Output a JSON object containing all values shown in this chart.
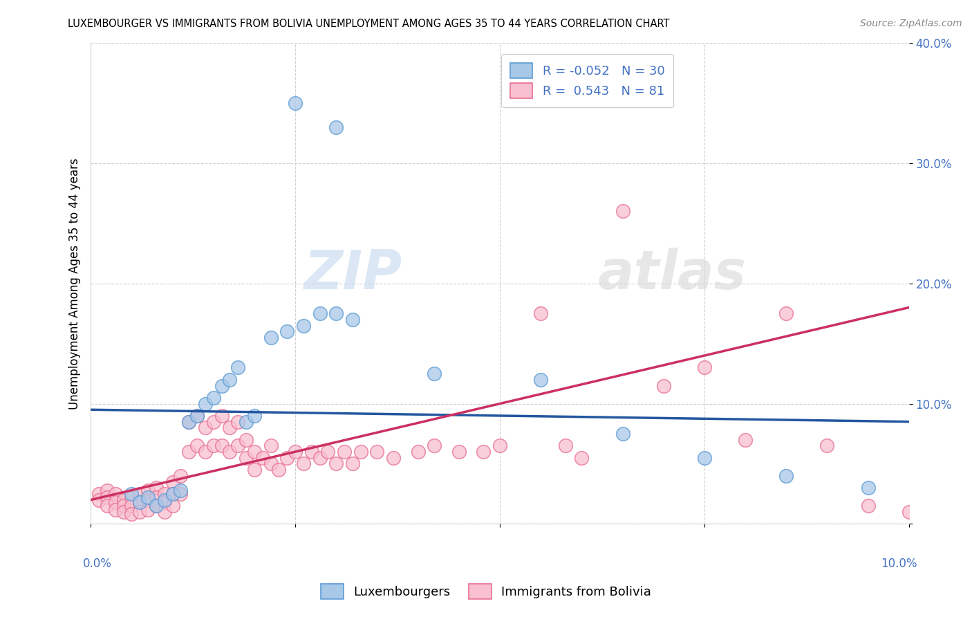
{
  "title": "LUXEMBOURGER VS IMMIGRANTS FROM BOLIVIA UNEMPLOYMENT AMONG AGES 35 TO 44 YEARS CORRELATION CHART",
  "source": "Source: ZipAtlas.com",
  "ylabel": "Unemployment Among Ages 35 to 44 years",
  "xlim": [
    0,
    0.1
  ],
  "ylim": [
    0,
    0.4
  ],
  "lux_color": "#a8c8e8",
  "lux_edge_color": "#5b9bd5",
  "bol_color": "#f8c0d0",
  "bol_edge_color": "#e87090",
  "lux_line_color": "#2457a0",
  "bol_line_color": "#cc3060",
  "legend_label_1": "R = -0.052   N = 30",
  "legend_label_2": "R =  0.543   N = 81",
  "bottom_label_1": "Luxembourgers",
  "bottom_label_2": "Immigrants from Bolivia",
  "watermark_1": "ZIP",
  "watermark_2": "atlas",
  "lux_x": [
    0.005,
    0.006,
    0.007,
    0.008,
    0.009,
    0.01,
    0.011,
    0.012,
    0.013,
    0.014,
    0.015,
    0.016,
    0.017,
    0.018,
    0.019,
    0.02,
    0.022,
    0.024,
    0.026,
    0.028,
    0.03,
    0.032,
    0.025,
    0.03,
    0.042,
    0.055,
    0.065,
    0.075,
    0.085,
    0.095
  ],
  "lux_y": [
    0.025,
    0.018,
    0.022,
    0.015,
    0.02,
    0.025,
    0.028,
    0.085,
    0.09,
    0.1,
    0.105,
    0.115,
    0.12,
    0.13,
    0.085,
    0.09,
    0.155,
    0.16,
    0.165,
    0.175,
    0.175,
    0.17,
    0.35,
    0.33,
    0.125,
    0.12,
    0.075,
    0.055,
    0.04,
    0.03
  ],
  "bol_x": [
    0.001,
    0.001,
    0.002,
    0.002,
    0.002,
    0.003,
    0.003,
    0.003,
    0.004,
    0.004,
    0.004,
    0.005,
    0.005,
    0.005,
    0.006,
    0.006,
    0.006,
    0.007,
    0.007,
    0.007,
    0.008,
    0.008,
    0.008,
    0.009,
    0.009,
    0.009,
    0.01,
    0.01,
    0.01,
    0.011,
    0.011,
    0.012,
    0.012,
    0.013,
    0.013,
    0.014,
    0.014,
    0.015,
    0.015,
    0.016,
    0.016,
    0.017,
    0.017,
    0.018,
    0.018,
    0.019,
    0.019,
    0.02,
    0.02,
    0.021,
    0.022,
    0.022,
    0.023,
    0.024,
    0.025,
    0.026,
    0.027,
    0.028,
    0.029,
    0.03,
    0.031,
    0.032,
    0.033,
    0.035,
    0.037,
    0.04,
    0.042,
    0.045,
    0.048,
    0.05,
    0.055,
    0.058,
    0.06,
    0.065,
    0.07,
    0.075,
    0.08,
    0.085,
    0.09,
    0.095,
    0.1
  ],
  "bol_y": [
    0.025,
    0.02,
    0.028,
    0.022,
    0.015,
    0.025,
    0.018,
    0.012,
    0.02,
    0.015,
    0.01,
    0.022,
    0.015,
    0.008,
    0.025,
    0.018,
    0.01,
    0.028,
    0.02,
    0.012,
    0.03,
    0.022,
    0.015,
    0.025,
    0.018,
    0.01,
    0.035,
    0.025,
    0.015,
    0.04,
    0.025,
    0.085,
    0.06,
    0.09,
    0.065,
    0.08,
    0.06,
    0.085,
    0.065,
    0.09,
    0.065,
    0.08,
    0.06,
    0.085,
    0.065,
    0.07,
    0.055,
    0.06,
    0.045,
    0.055,
    0.065,
    0.05,
    0.045,
    0.055,
    0.06,
    0.05,
    0.06,
    0.055,
    0.06,
    0.05,
    0.06,
    0.05,
    0.06,
    0.06,
    0.055,
    0.06,
    0.065,
    0.06,
    0.06,
    0.065,
    0.175,
    0.065,
    0.055,
    0.26,
    0.115,
    0.13,
    0.07,
    0.175,
    0.065,
    0.015,
    0.01
  ],
  "lux_line_x": [
    0.0,
    0.1
  ],
  "lux_line_y": [
    0.095,
    0.085
  ],
  "bol_line_x": [
    0.0,
    0.1
  ],
  "bol_line_y": [
    0.02,
    0.18
  ]
}
